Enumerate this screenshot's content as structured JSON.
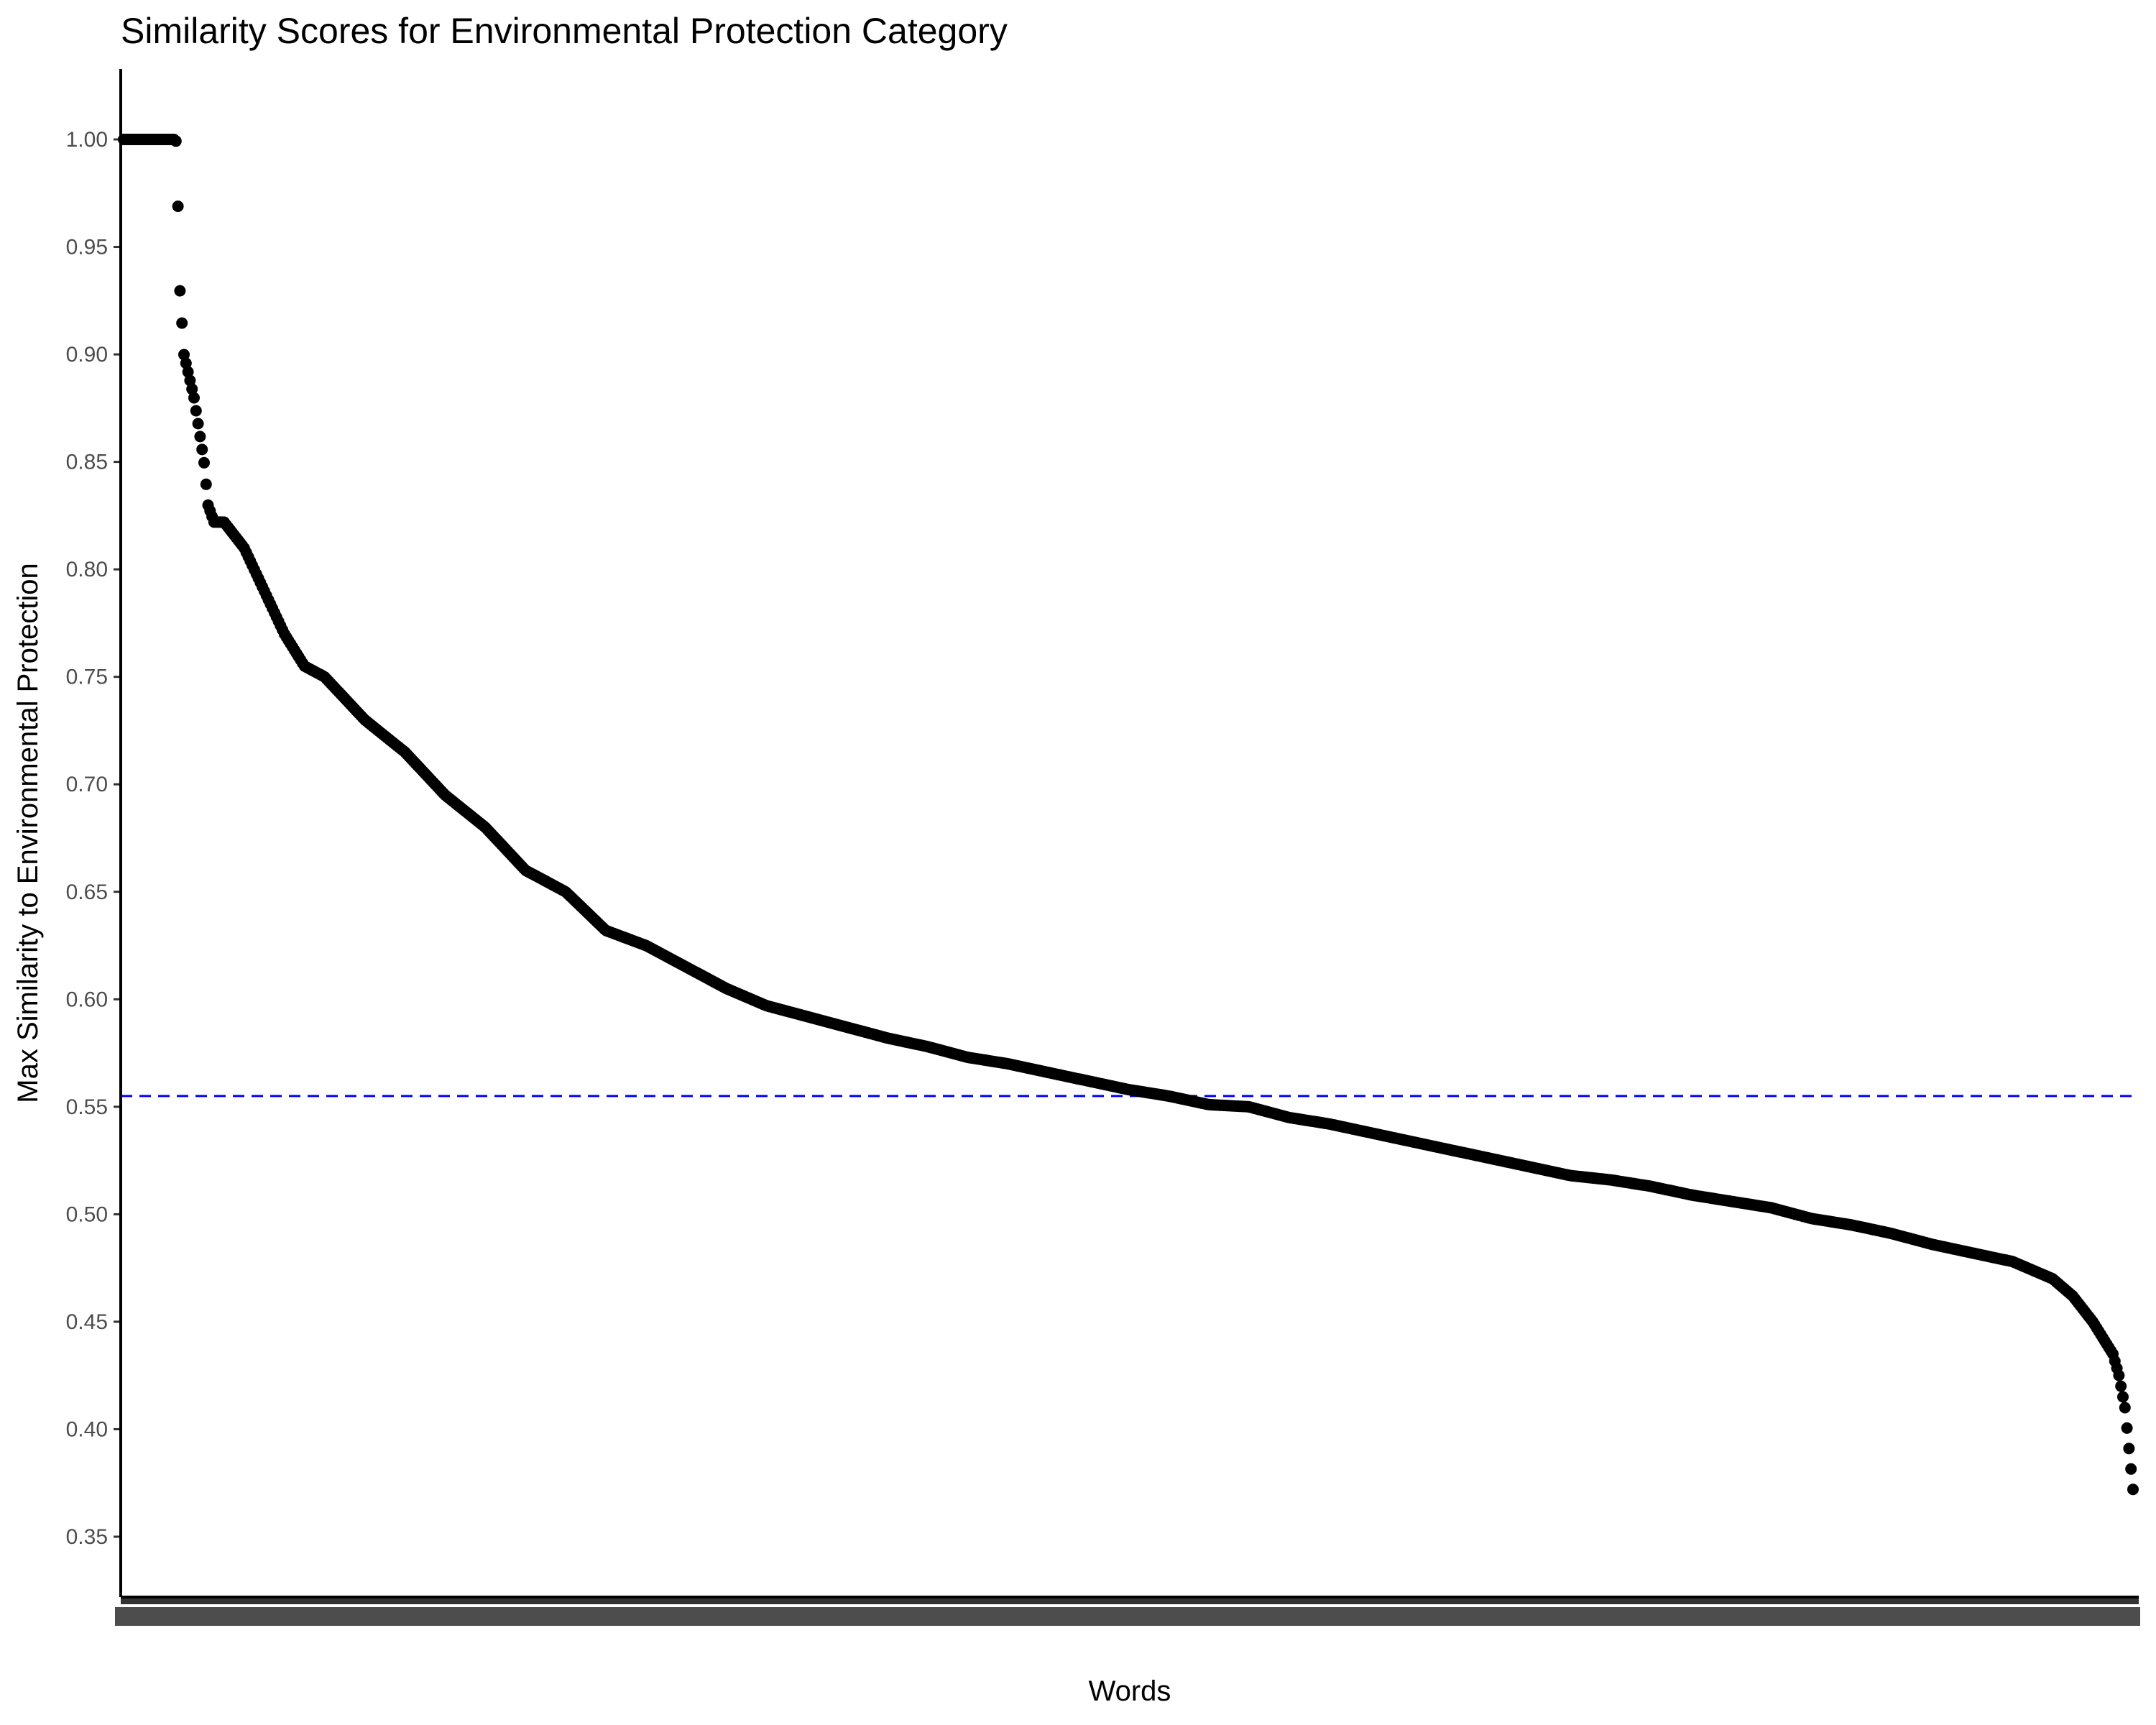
{
  "chart_data": {
    "type": "scatter",
    "title": "Similarity Scores for Environmental Protection Category",
    "xlabel": "Words",
    "ylabel": "Max Similarity to Environmental Protection",
    "ylim": [
      0.34,
      1.03
    ],
    "yticks": [
      "0.35",
      "0.40",
      "0.45",
      "0.50",
      "0.55",
      "0.60",
      "0.65",
      "0.70",
      "0.75",
      "0.80",
      "0.85",
      "0.90",
      "0.95",
      "1.00"
    ],
    "x_tick_labels_legible": false,
    "grid": false,
    "legend": "none",
    "n_points": 1000,
    "series": [
      {
        "curve_x_fraction": [
          0,
          0.026,
          0.027,
          0.028,
          0.03,
          0.035,
          0.04,
          0.042,
          0.045,
          0.05,
          0.06,
          0.07,
          0.08,
          0.09,
          0.1,
          0.12,
          0.14,
          0.16,
          0.18,
          0.2,
          0.22,
          0.24,
          0.26,
          0.28,
          0.3,
          0.32,
          0.34,
          0.36,
          0.38,
          0.4,
          0.42,
          0.44,
          0.46,
          0.48,
          0.5,
          0.52,
          0.54,
          0.56,
          0.58,
          0.6,
          0.62,
          0.64,
          0.66,
          0.68,
          0.7,
          0.72,
          0.74,
          0.76,
          0.78,
          0.8,
          0.82,
          0.84,
          0.86,
          0.88,
          0.9,
          0.92,
          0.94,
          0.96,
          0.97,
          0.98,
          0.99,
          0.993,
          0.996,
          1.0
        ],
        "values": [
          1.0,
          1.0,
          0.97,
          0.93,
          0.9,
          0.88,
          0.85,
          0.83,
          0.822,
          0.822,
          0.81,
          0.79,
          0.77,
          0.755,
          0.75,
          0.73,
          0.715,
          0.695,
          0.68,
          0.66,
          0.65,
          0.632,
          0.625,
          0.615,
          0.605,
          0.597,
          0.592,
          0.587,
          0.582,
          0.578,
          0.573,
          0.57,
          0.566,
          0.562,
          0.558,
          0.555,
          0.551,
          0.55,
          0.545,
          0.542,
          0.538,
          0.534,
          0.53,
          0.526,
          0.522,
          0.518,
          0.516,
          0.513,
          0.509,
          0.506,
          0.503,
          0.498,
          0.495,
          0.491,
          0.486,
          0.482,
          0.478,
          0.47,
          0.462,
          0.45,
          0.435,
          0.425,
          0.41,
          0.372
        ],
        "color": "#000000"
      }
    ],
    "reference_line": {
      "y": 0.555,
      "style": "dashed",
      "color": "#0000ff"
    },
    "colors": {
      "points": "#000000",
      "reference_line": "#0000ff",
      "axis": "#000000",
      "tick_label": "#4d4d4d"
    }
  }
}
